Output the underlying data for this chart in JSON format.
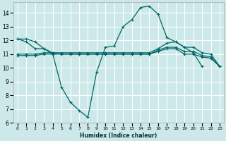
{
  "xlabel": "Humidex (Indice chaleur)",
  "ylabel": "",
  "bg_color": "#cce8e8",
  "grid_color": "#ffffff",
  "line_color": "#006666",
  "xlim": [
    -0.5,
    23.5
  ],
  "ylim": [
    6,
    14.8
  ],
  "xticks": [
    0,
    1,
    2,
    3,
    4,
    5,
    6,
    7,
    8,
    9,
    10,
    11,
    12,
    13,
    14,
    15,
    16,
    17,
    18,
    19,
    20,
    21,
    22,
    23
  ],
  "yticks": [
    6,
    7,
    8,
    9,
    10,
    11,
    12,
    13,
    14
  ],
  "lines": [
    {
      "x": [
        0,
        1,
        2,
        3,
        4,
        5,
        6,
        7,
        8,
        9,
        10,
        11,
        12,
        13,
        14,
        15,
        16,
        17,
        18,
        19,
        20,
        21
      ],
      "y": [
        12.1,
        12.1,
        11.9,
        11.4,
        11.0,
        8.6,
        7.5,
        6.9,
        6.4,
        9.7,
        11.5,
        11.6,
        13.0,
        13.5,
        14.4,
        14.5,
        13.9,
        12.2,
        11.9,
        11.5,
        11.1,
        10.1
      ]
    },
    {
      "x": [
        0,
        1,
        2,
        3,
        4,
        5,
        6,
        7,
        8,
        9,
        10,
        11,
        12,
        13,
        14,
        15,
        16,
        17,
        18,
        19,
        20,
        21,
        22,
        23
      ],
      "y": [
        12.1,
        11.9,
        11.4,
        11.4,
        11.1,
        11.1,
        11.1,
        11.1,
        11.1,
        11.1,
        11.1,
        11.1,
        11.1,
        11.1,
        11.1,
        11.1,
        11.4,
        11.8,
        11.9,
        11.5,
        11.5,
        11.1,
        11.0,
        10.1
      ]
    },
    {
      "x": [
        0,
        1,
        2,
        3,
        4,
        5,
        6,
        7,
        8,
        9,
        10,
        11,
        12,
        13,
        14,
        15,
        16,
        17,
        18,
        19,
        20,
        21,
        22,
        23
      ],
      "y": [
        11.0,
        11.0,
        11.0,
        11.1,
        11.1,
        11.0,
        11.0,
        11.0,
        11.0,
        11.0,
        11.0,
        11.0,
        11.0,
        11.0,
        11.0,
        11.0,
        11.3,
        11.5,
        11.5,
        11.2,
        11.2,
        10.9,
        10.8,
        10.1
      ]
    },
    {
      "x": [
        0,
        1,
        2,
        3,
        4,
        5,
        6,
        7,
        8,
        9,
        10,
        11,
        12,
        13,
        14,
        15,
        16,
        17,
        18,
        19,
        20,
        21,
        22,
        23
      ],
      "y": [
        10.9,
        10.9,
        10.9,
        11.0,
        11.0,
        11.0,
        11.0,
        11.0,
        11.0,
        11.0,
        11.0,
        11.0,
        11.0,
        11.0,
        11.0,
        11.0,
        11.2,
        11.4,
        11.4,
        11.0,
        11.0,
        10.8,
        10.7,
        10.1
      ]
    }
  ]
}
